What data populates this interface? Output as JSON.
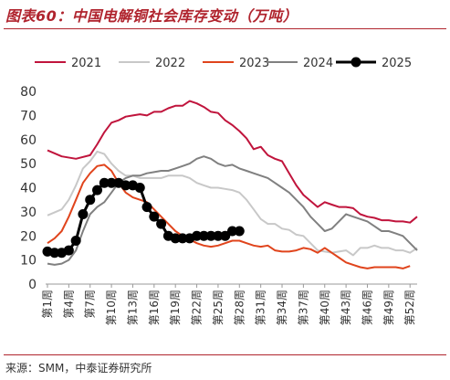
{
  "header": {
    "title": "图表60：中国电解铜社会库存变动（万吨）"
  },
  "footer": {
    "source": "来源：SMM，中泰证券研究所"
  },
  "chart_data": {
    "type": "line",
    "title": "图表60：中国电解铜社会库存变动（万吨）",
    "xlabel": "",
    "ylabel": "",
    "ylim": [
      0,
      80
    ],
    "yticks": [
      0,
      10,
      20,
      30,
      40,
      50,
      60,
      70,
      80
    ],
    "x_tick_labels": [
      "第1周",
      "第4周",
      "第7周",
      "第10周",
      "第13周",
      "第16周",
      "第19周",
      "第22周",
      "第25周",
      "第28周",
      "第31周",
      "第34周",
      "第37周",
      "第40周",
      "第43周",
      "第46周",
      "第49周",
      "第52周"
    ],
    "x_tick_weeks": [
      1,
      4,
      7,
      10,
      13,
      16,
      19,
      22,
      25,
      28,
      31,
      34,
      37,
      40,
      43,
      46,
      49,
      52
    ],
    "x_range": [
      1,
      53
    ],
    "legend_position": "top",
    "grid": false,
    "series": [
      {
        "name": "2021",
        "color": "#c0143c",
        "marker": "none",
        "x": [
          1,
          3,
          5,
          7,
          8,
          9,
          10,
          11,
          12,
          13,
          14,
          15,
          16,
          17,
          18,
          19,
          20,
          21,
          22,
          23,
          24,
          25,
          26,
          27,
          28,
          29,
          30,
          31,
          32,
          33,
          34,
          35,
          36,
          37,
          38,
          39,
          40,
          41,
          42,
          43,
          44,
          45,
          46,
          47,
          48,
          49,
          50,
          51,
          52,
          53
        ],
        "y": [
          55.5,
          53,
          52,
          53.5,
          58,
          63,
          67,
          68,
          69.5,
          70,
          70.5,
          70,
          71.5,
          71.5,
          73,
          74,
          74,
          76,
          75,
          73.5,
          71.5,
          71,
          68,
          66,
          63.5,
          60.5,
          56,
          57,
          53.5,
          52,
          51,
          46,
          41,
          37,
          34.5,
          32,
          34,
          33,
          32,
          32,
          31.5,
          29,
          28,
          27.5,
          26.5,
          26.5,
          26,
          26,
          25.5,
          28
        ]
      },
      {
        "name": "2022",
        "color": "#c8c8c8",
        "marker": "none",
        "x": [
          1,
          3,
          4,
          5,
          6,
          7,
          8,
          9,
          10,
          11,
          12,
          13,
          14,
          15,
          16,
          17,
          18,
          19,
          20,
          21,
          22,
          23,
          24,
          25,
          26,
          27,
          28,
          29,
          30,
          31,
          32,
          33,
          34,
          35,
          36,
          37,
          38,
          39,
          40,
          41,
          42,
          43,
          44,
          45,
          46,
          47,
          48,
          49,
          50,
          51,
          52,
          53
        ],
        "y": [
          28.5,
          31,
          35,
          41,
          48,
          51,
          55,
          54,
          50,
          47,
          45,
          45,
          44,
          44,
          44,
          44,
          45,
          45,
          45,
          44,
          42,
          41,
          40,
          40,
          39.5,
          39,
          38,
          35,
          31,
          27,
          25,
          25,
          23,
          22.5,
          20.5,
          20,
          17,
          14,
          13.5,
          13,
          13.5,
          14,
          12,
          15,
          15,
          16,
          15,
          15,
          14,
          14,
          13,
          15
        ]
      },
      {
        "name": "2023",
        "color": "#e0441c",
        "marker": "none",
        "x": [
          1,
          2,
          3,
          4,
          5,
          6,
          7,
          8,
          9,
          10,
          11,
          12,
          13,
          14,
          15,
          16,
          17,
          18,
          19,
          20,
          21,
          22,
          23,
          24,
          25,
          26,
          27,
          28,
          29,
          30,
          31,
          32,
          33,
          34,
          35,
          36,
          37,
          38,
          39,
          40,
          41,
          42,
          43,
          44,
          45,
          46,
          47,
          48,
          49,
          50,
          51,
          52
        ],
        "y": [
          17,
          19,
          22,
          28,
          35,
          42,
          46,
          49,
          49.5,
          47,
          42,
          38,
          36,
          35,
          34,
          31,
          28,
          25,
          22,
          20,
          18.5,
          17,
          16,
          15.5,
          16,
          17,
          18,
          18,
          17,
          16,
          15.5,
          16,
          14,
          13.5,
          13.5,
          14,
          15,
          14.5,
          13,
          15,
          13,
          11,
          9,
          8,
          7,
          6.5,
          7,
          7,
          7,
          7,
          6.5,
          7.5
        ]
      },
      {
        "name": "2024",
        "color": "#808080",
        "marker": "none",
        "x": [
          1,
          2,
          3,
          4,
          5,
          6,
          7,
          8,
          9,
          10,
          11,
          12,
          13,
          14,
          15,
          16,
          17,
          18,
          19,
          20,
          21,
          22,
          23,
          24,
          25,
          26,
          27,
          28,
          29,
          30,
          31,
          32,
          33,
          34,
          35,
          36,
          37,
          38,
          39,
          40,
          41,
          42,
          43,
          44,
          45,
          46,
          47,
          48,
          49,
          50,
          51,
          52,
          53
        ],
        "y": [
          8.5,
          8,
          8.5,
          10,
          14,
          22,
          29,
          32,
          34,
          38,
          42,
          44,
          45,
          45,
          46,
          46.5,
          47,
          47,
          48,
          49,
          50,
          52,
          53,
          52,
          50,
          49,
          49.5,
          48,
          47,
          46,
          45,
          44,
          42,
          40,
          38,
          35,
          32,
          28,
          25,
          22,
          23,
          26,
          29,
          28,
          27,
          26,
          24,
          22,
          22,
          21,
          20,
          17,
          14
        ]
      },
      {
        "name": "2025",
        "color": "#000000",
        "marker": "circle",
        "x": [
          1,
          2,
          3,
          4,
          5,
          6,
          7,
          8,
          9,
          10,
          11,
          12,
          13,
          14,
          15,
          16,
          17,
          18,
          19,
          20,
          21,
          22,
          23,
          24,
          25,
          26,
          27,
          28
        ],
        "y": [
          13.5,
          13,
          13,
          14,
          18,
          29,
          35,
          39,
          42,
          42,
          42,
          41,
          41,
          40,
          32,
          28,
          25,
          20,
          19,
          19,
          19,
          20,
          20,
          20,
          20,
          20,
          22,
          22
        ]
      }
    ]
  }
}
